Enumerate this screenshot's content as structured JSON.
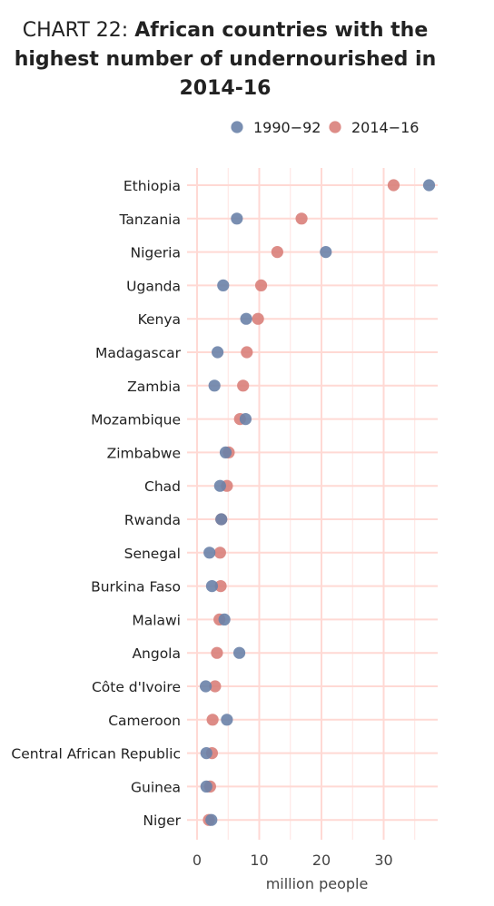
{
  "page": {
    "title_prefix": "CHART 22:",
    "title": "African countries with the highest number of undernourished in 2014-16"
  },
  "colors": {
    "background": "#ffffff",
    "grid": "#ffd9d4",
    "series_1990": "#6a82a8",
    "series_2014": "#d9807a",
    "text": "#222222"
  },
  "chart_data": {
    "type": "scatter",
    "title": "African countries with the highest number of undernourished in 2014-16",
    "xlabel": "million people",
    "ylabel": "",
    "xlim": [
      0,
      38
    ],
    "xticks": [
      0,
      10,
      20,
      30
    ],
    "grid": true,
    "legend_position": "top-right",
    "categories": [
      "Ethiopia",
      "Tanzania",
      "Nigeria",
      "Uganda",
      "Kenya",
      "Madagascar",
      "Zambia",
      "Mozambique",
      "Zimbabwe",
      "Chad",
      "Rwanda",
      "Senegal",
      "Burkina Faso",
      "Malawi",
      "Angola",
      "Côte d'Ivoire",
      "Cameroon",
      "Central African Republic",
      "Guinea",
      "Niger"
    ],
    "series": [
      {
        "name": "1990−92",
        "color": "#6a82a8",
        "values": [
          37.3,
          6.4,
          20.7,
          4.2,
          7.9,
          3.3,
          2.8,
          7.8,
          4.6,
          3.7,
          3.9,
          2.0,
          2.4,
          4.4,
          6.8,
          1.4,
          4.8,
          1.5,
          1.5,
          2.3
        ]
      },
      {
        "name": "2014−16",
        "color": "#d9807a",
        "values": [
          31.6,
          16.8,
          12.9,
          10.3,
          9.8,
          8.0,
          7.4,
          6.9,
          5.1,
          4.8,
          3.9,
          3.7,
          3.8,
          3.6,
          3.2,
          2.9,
          2.5,
          2.4,
          2.1,
          1.9
        ]
      }
    ]
  }
}
